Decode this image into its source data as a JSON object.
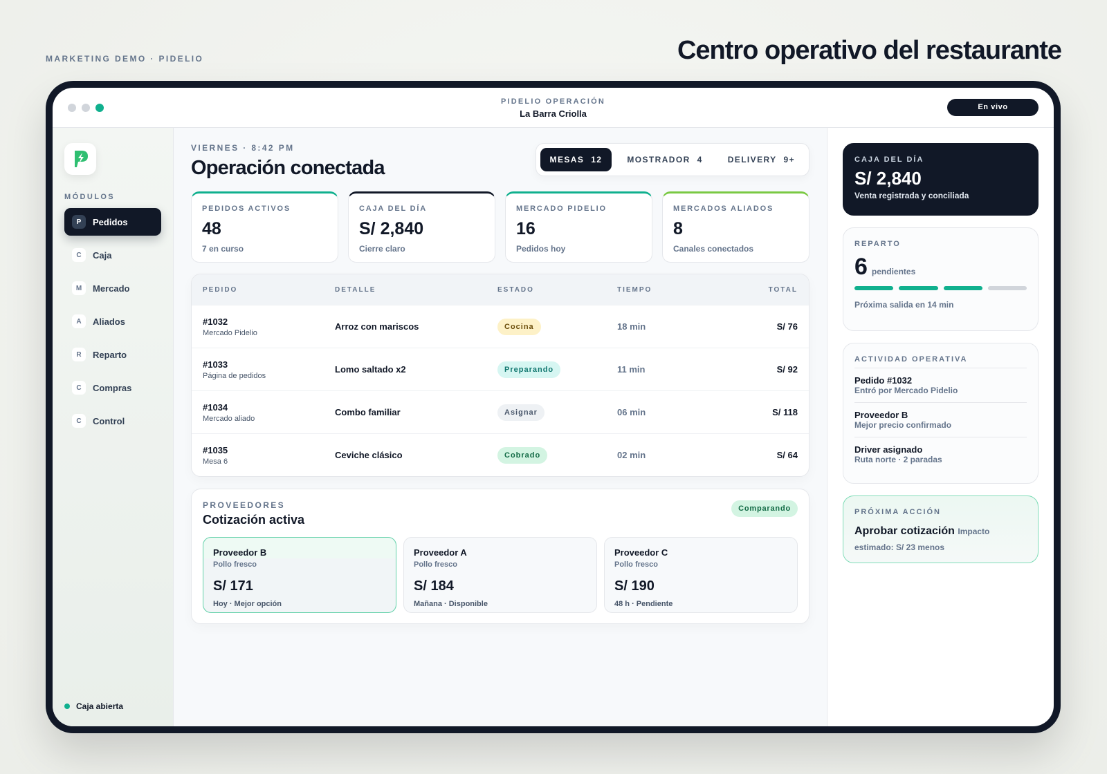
{
  "header": {
    "eyebrow": "MARKETING DEMO · PIDELIO",
    "title": "Centro operativo del restaurante"
  },
  "window": {
    "app": "PIDELIO OPERACIÓN",
    "venue": "La Barra Criolla",
    "status": "En vivo"
  },
  "sidebar": {
    "section": "MÓDULOS",
    "modules": [
      {
        "initial": "P",
        "label": "Pedidos"
      },
      {
        "initial": "C",
        "label": "Caja"
      },
      {
        "initial": "M",
        "label": "Mercado"
      },
      {
        "initial": "A",
        "label": "Aliados"
      },
      {
        "initial": "R",
        "label": "Reparto"
      },
      {
        "initial": "C",
        "label": "Compras"
      },
      {
        "initial": "C",
        "label": "Control"
      }
    ],
    "footer": "Caja abierta"
  },
  "main": {
    "eyebrow": "VIERNES · 8:42 PM",
    "title": "Operación conectada",
    "tabs": [
      {
        "label": "MESAS",
        "count": "12"
      },
      {
        "label": "MOSTRADOR",
        "count": "4"
      },
      {
        "label": "DELIVERY",
        "count": "9+"
      }
    ],
    "kpis": [
      {
        "label": "PEDIDOS ACTIVOS",
        "value": "48",
        "note": "7 en curso"
      },
      {
        "label": "CAJA DEL DÍA",
        "value": "S/ 2,840",
        "note": "Cierre claro"
      },
      {
        "label": "MERCADO PIDELIO",
        "value": "16",
        "note": "Pedidos hoy"
      },
      {
        "label": "MERCADOS ALIADOS",
        "value": "8",
        "note": "Canales conectados"
      }
    ],
    "orders": {
      "columns": [
        "PEDIDO",
        "DETALLE",
        "ESTADO",
        "TIEMPO",
        "TOTAL"
      ],
      "rows": [
        {
          "id": "#1032",
          "source": "Mercado Pidelio",
          "detail": "Arroz con mariscos",
          "status": "Cocina",
          "time": "18 min",
          "total": "S/ 76"
        },
        {
          "id": "#1033",
          "source": "Página de pedidos",
          "detail": "Lomo saltado x2",
          "status": "Preparando",
          "time": "11 min",
          "total": "S/ 92"
        },
        {
          "id": "#1034",
          "source": "Mercado aliado",
          "detail": "Combo familiar",
          "status": "Asignar",
          "time": "06 min",
          "total": "S/ 118"
        },
        {
          "id": "#1035",
          "source": "Mesa 6",
          "detail": "Ceviche clásico",
          "status": "Cobrado",
          "time": "02 min",
          "total": "S/ 64"
        }
      ]
    },
    "suppliers": {
      "eyebrow": "PROVEEDORES",
      "title": "Cotización activa",
      "badge": "Comparando",
      "quotes": [
        {
          "name": "Proveedor B",
          "item": "Pollo fresco",
          "price": "S/ 171",
          "note": "Hoy · Mejor opción"
        },
        {
          "name": "Proveedor A",
          "item": "Pollo fresco",
          "price": "S/ 184",
          "note": "Mañana · Disponible"
        },
        {
          "name": "Proveedor C",
          "item": "Pollo fresco",
          "price": "S/ 190",
          "note": "48 h · Pendiente"
        }
      ]
    }
  },
  "aside": {
    "cash": {
      "label": "CAJA DEL DÍA",
      "value": "S/ 2,840",
      "note": "Venta registrada y conciliada"
    },
    "delivery": {
      "label": "REPARTO",
      "value": "6",
      "unit": "pendientes",
      "note": "Próxima salida en 14 min"
    },
    "activity": {
      "label": "ACTIVIDAD OPERATIVA",
      "items": [
        {
          "title": "Pedido #1032",
          "note": "Entró por Mercado Pidelio"
        },
        {
          "title": "Proveedor B",
          "note": "Mejor precio confirmado"
        },
        {
          "title": "Driver asignado",
          "note": "Ruta norte · 2 paradas"
        }
      ]
    },
    "next": {
      "label": "PRÓXIMA ACCIÓN",
      "title": "Aprobar cotización",
      "note": "Impacto estimado: S/ 23 menos"
    }
  }
}
